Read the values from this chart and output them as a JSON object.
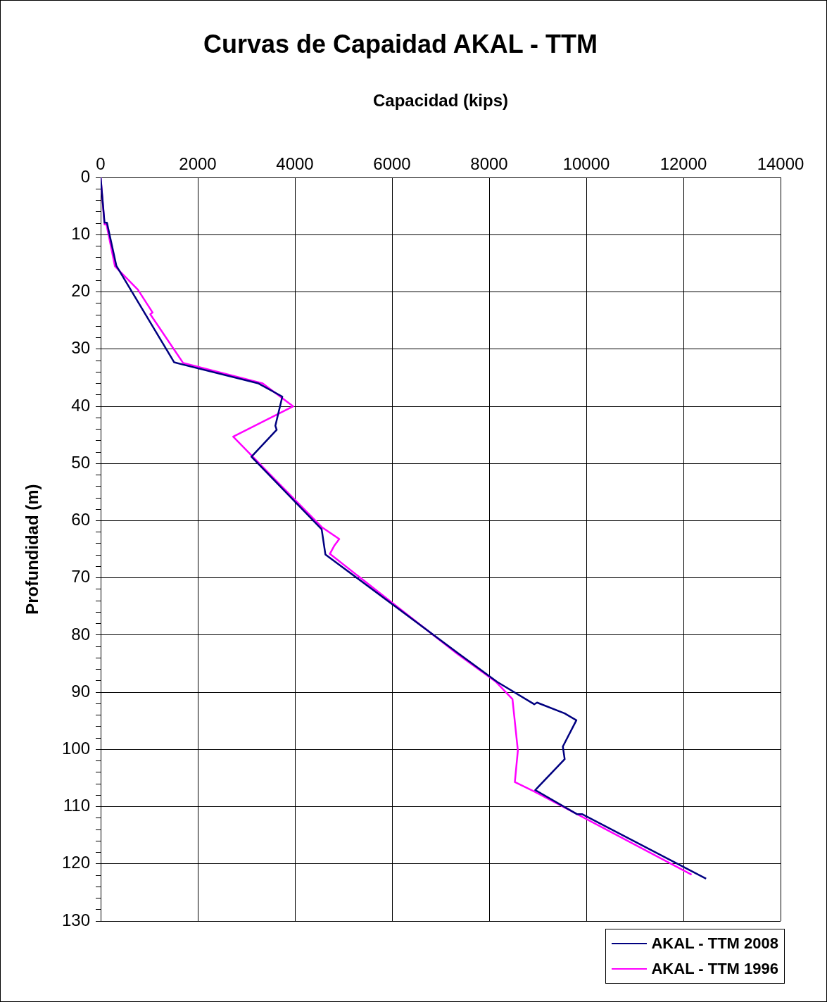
{
  "chart_data": {
    "type": "line",
    "title": "Curvas de Capaidad AKAL - TTM",
    "xlabel": "Capacidad (kips)",
    "ylabel": "Profundidad (m)",
    "xlim": [
      0,
      14000
    ],
    "xticks": [
      0,
      2000,
      4000,
      6000,
      8000,
      10000,
      12000,
      14000
    ],
    "ylim": [
      130,
      0
    ],
    "yticks": [
      0,
      {
        "value": 2,
        "label": null
      },
      {
        "value": 4,
        "label": null
      },
      {
        "value": 6,
        "label": null
      },
      {
        "value": 8,
        "label": null
      },
      10,
      {
        "value": 12,
        "label": null
      },
      {
        "value": 14,
        "label": null
      },
      {
        "value": 16,
        "label": null
      },
      {
        "value": 18,
        "label": null
      },
      20,
      {
        "value": 22,
        "label": null
      },
      {
        "value": 24,
        "label": null
      },
      {
        "value": 26,
        "label": null
      },
      {
        "value": 28,
        "label": null
      },
      30,
      {
        "value": 32,
        "label": null
      },
      {
        "value": 34,
        "label": null
      },
      {
        "value": 36,
        "label": null
      },
      {
        "value": 38,
        "label": null
      },
      40,
      {
        "value": 42,
        "label": null
      },
      {
        "value": 44,
        "label": null
      },
      {
        "value": 46,
        "label": null
      },
      {
        "value": 48,
        "label": null
      },
      50,
      {
        "value": 52,
        "label": null
      },
      {
        "value": 54,
        "label": null
      },
      {
        "value": 56,
        "label": null
      },
      {
        "value": 58,
        "label": null
      },
      60,
      {
        "value": 62,
        "label": null
      },
      {
        "value": 64,
        "label": null
      },
      {
        "value": 66,
        "label": null
      },
      {
        "value": 68,
        "label": null
      },
      70,
      {
        "value": 72,
        "label": null
      },
      {
        "value": 74,
        "label": null
      },
      {
        "value": 76,
        "label": null
      },
      {
        "value": 78,
        "label": null
      },
      80,
      {
        "value": 82,
        "label": null
      },
      {
        "value": 84,
        "label": null
      },
      {
        "value": 86,
        "label": null
      },
      {
        "value": 88,
        "label": null
      },
      90,
      {
        "value": 92,
        "label": null
      },
      {
        "value": 94,
        "label": null
      },
      {
        "value": 96,
        "label": null
      },
      {
        "value": 98,
        "label": null
      },
      100,
      {
        "value": 102,
        "label": null
      },
      {
        "value": 104,
        "label": null
      },
      {
        "value": 106,
        "label": null
      },
      {
        "value": 108,
        "label": null
      },
      110,
      {
        "value": 112,
        "label": null
      },
      {
        "value": 114,
        "label": null
      },
      {
        "value": 116,
        "label": null
      },
      {
        "value": 118,
        "label": null
      },
      120,
      {
        "value": 122,
        "label": null
      },
      {
        "value": 124,
        "label": null
      },
      {
        "value": 126,
        "label": null
      },
      {
        "value": 128,
        "label": null
      },
      130
    ],
    "grid": true,
    "legend": "bottom right",
    "marker": "none",
    "line_style": "solid",
    "series": [
      {
        "name": "AKAL - TTM 2008",
        "color": "#000080",
        "x": [
          0,
          80,
          130,
          323,
          1514,
          3250,
          3741,
          3597,
          3625,
          3105,
          4551,
          4628,
          7347,
          8167,
          8928,
          8986,
          9555,
          9796,
          9517,
          9555,
          8948,
          9806,
          9912,
          12467
        ],
        "values": [
          0,
          7.9,
          7.9,
          15.4,
          32.3,
          36.0,
          38.3,
          43.4,
          44.1,
          48.8,
          61.5,
          65.9,
          83.1,
          88.2,
          92.1,
          91.8,
          93.7,
          94.9,
          99.5,
          101.7,
          107.1,
          111.3,
          111.3,
          122.6
        ]
      },
      {
        "name": "AKAL - TTM 1996",
        "color": "#ff00ff",
        "x": [
          0,
          80,
          120,
          294,
          767,
          1070,
          1022,
          1697,
          3336,
          3963,
          2729,
          3731,
          4551,
          4913,
          4816,
          4720,
          7347,
          8143,
          8480,
          8591,
          8529,
          8938,
          12168
        ],
        "values": [
          0,
          8.2,
          8.2,
          15.5,
          19.6,
          23.6,
          23.9,
          32.4,
          36.0,
          40.0,
          45.3,
          54.0,
          61.1,
          63.2,
          64.3,
          65.8,
          83.3,
          88.2,
          91.2,
          100.2,
          105.7,
          107.4,
          121.9
        ]
      }
    ]
  }
}
